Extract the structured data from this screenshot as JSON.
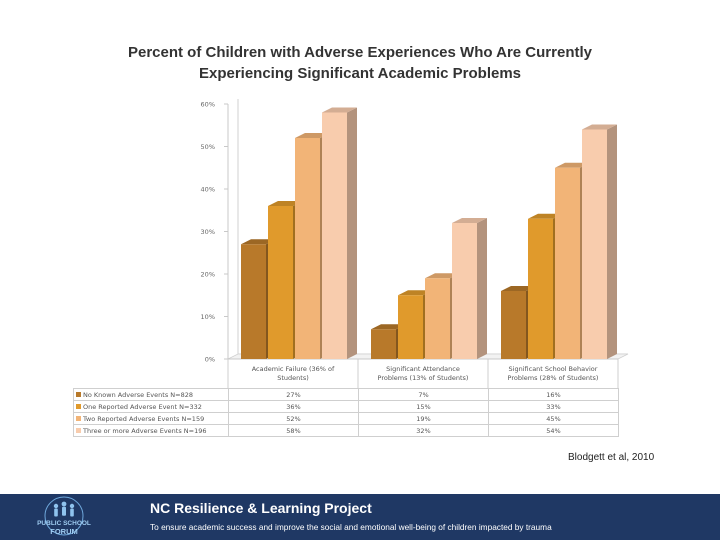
{
  "slide": {
    "title": "Percent of Children with Adverse Experiences Who Are Currently Experiencing Significant Academic Problems",
    "citation": "Blodgett et al, 2010",
    "footer_title": "NC Resilience & Learning Project",
    "footer_subtitle": "To ensure academic success and improve the social and emotional well-being of children impacted by trauma",
    "logo_text": [
      "PUBLIC SCHOOL",
      "FORUM"
    ]
  },
  "colors": {
    "series": [
      "#b8792a",
      "#e09a2c",
      "#f2b477",
      "#f8ccad"
    ],
    "footer": "#1f3864"
  },
  "chart_data": {
    "type": "bar",
    "title": "Percent of Children with Adverse Experiences Who Are Currently Experiencing Significant Academic Problems",
    "categories": [
      "Academic Failure (36% of Students)",
      "Significant Attendance Problems (13% of Students)",
      "Significant School Behavior Problems (28% of Students)"
    ],
    "category_lines": [
      [
        "Academic Failure (36% of",
        "Students)"
      ],
      [
        "Significant Attendance",
        "Problems (13% of Students)"
      ],
      [
        "Significant School Behavior",
        "Problems (28% of Students)"
      ]
    ],
    "series": [
      {
        "name": "No Known Adverse Events N=828",
        "values": [
          27,
          7,
          16
        ]
      },
      {
        "name": "One Reported Adverse Event N=332",
        "values": [
          36,
          15,
          33
        ]
      },
      {
        "name": "Two Reported Adverse Events N=159",
        "values": [
          52,
          19,
          45
        ]
      },
      {
        "name": "Three or more Adverse Events N=196",
        "values": [
          58,
          32,
          54
        ]
      }
    ],
    "table_labels": [
      [
        "27%",
        "7%",
        "16%"
      ],
      [
        "36%",
        "15%",
        "33%"
      ],
      [
        "52%",
        "19%",
        "45%"
      ],
      [
        "58%",
        "32%",
        "54%"
      ]
    ],
    "yticks": [
      "0%",
      "10%",
      "20%",
      "30%",
      "40%",
      "50%",
      "60%"
    ],
    "ylim": [
      0,
      60
    ],
    "grid": false,
    "legend": "data table below chart",
    "style": "3d columns"
  }
}
